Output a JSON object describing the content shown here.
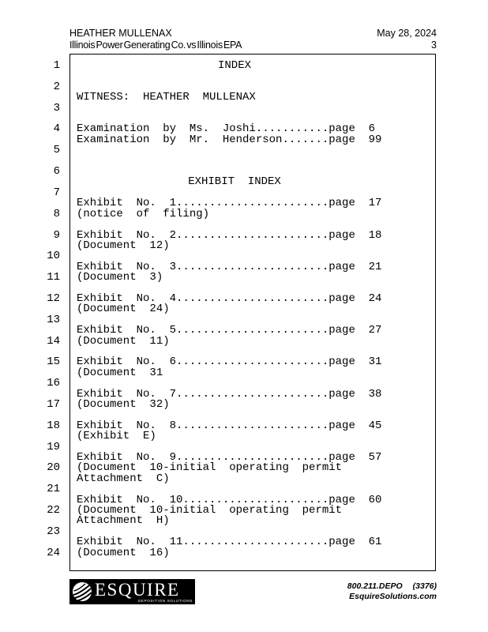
{
  "header": {
    "witness_name": "HEATHER MULLENAX",
    "case_title": "Illinois Power Generating Co. vs Illinois EPA",
    "date": "May 28, 2024",
    "page_number": "3"
  },
  "transcript": {
    "line_numbers": [
      "1",
      "2",
      "3",
      "4",
      "5",
      "6",
      "7",
      "8",
      "9",
      "10",
      "11",
      "12",
      "13",
      "14",
      "15",
      "16",
      "17",
      "18",
      "19",
      "20",
      "21",
      "22",
      "23",
      "24"
    ],
    "rows": [
      {
        "t": "INDEX",
        "c": true
      },
      {
        "t": ""
      },
      {
        "t": ""
      },
      {
        "t": "WITNESS: HEATHER MULLENAX"
      },
      {
        "t": ""
      },
      {
        "t": ""
      },
      {
        "t": "Examination by Ms. Joshi...........page 6"
      },
      {
        "t": "Examination by Mr. Henderson.......page 99"
      },
      {
        "t": ""
      },
      {
        "t": ""
      },
      {
        "t": ""
      },
      {
        "t": "EXHIBIT INDEX",
        "c": true
      },
      {
        "t": ""
      },
      {
        "t": "Exhibit No. 1.......................page 17"
      },
      {
        "t": "(notice of filing)"
      },
      {
        "t": ""
      },
      {
        "t": "Exhibit No. 2.......................page 18"
      },
      {
        "t": "(Document 12)"
      },
      {
        "t": ""
      },
      {
        "t": "Exhibit No. 3.......................page 21"
      },
      {
        "t": "(Document 3)"
      },
      {
        "t": ""
      },
      {
        "t": "Exhibit No. 4.......................page 24"
      },
      {
        "t": "(Document 24)"
      },
      {
        "t": ""
      },
      {
        "t": "Exhibit No. 5.......................page 27"
      },
      {
        "t": "(Document 11)"
      },
      {
        "t": ""
      },
      {
        "t": "Exhibit No. 6.......................page 31"
      },
      {
        "t": "(Document 31"
      },
      {
        "t": ""
      },
      {
        "t": "Exhibit No. 7.......................page 38"
      },
      {
        "t": "(Document 32)"
      },
      {
        "t": ""
      },
      {
        "t": "Exhibit No. 8.......................page 45"
      },
      {
        "t": "(Exhibit E)"
      },
      {
        "t": ""
      },
      {
        "t": "Exhibit No. 9.......................page 57"
      },
      {
        "t": "(Document 10-initial operating permit"
      },
      {
        "t": "Attachment C)"
      },
      {
        "t": ""
      },
      {
        "t": "Exhibit No. 10......................page 60"
      },
      {
        "t": "(Document 10-initial operating permit"
      },
      {
        "t": "Attachment H)"
      },
      {
        "t": ""
      },
      {
        "t": "Exhibit No. 11......................page 61"
      },
      {
        "t": "(Document 16)"
      }
    ]
  },
  "footer": {
    "logo_text": "ESQUIRE",
    "logo_tagline": "DEPOSITION SOLUTIONS",
    "phone": "800.211.DEPO",
    "phone_code": "(3376)",
    "website": "EsquireSolutions.com"
  },
  "colors": {
    "ink": "#000000",
    "paper": "#ffffff",
    "logo_bg": "#000000"
  }
}
